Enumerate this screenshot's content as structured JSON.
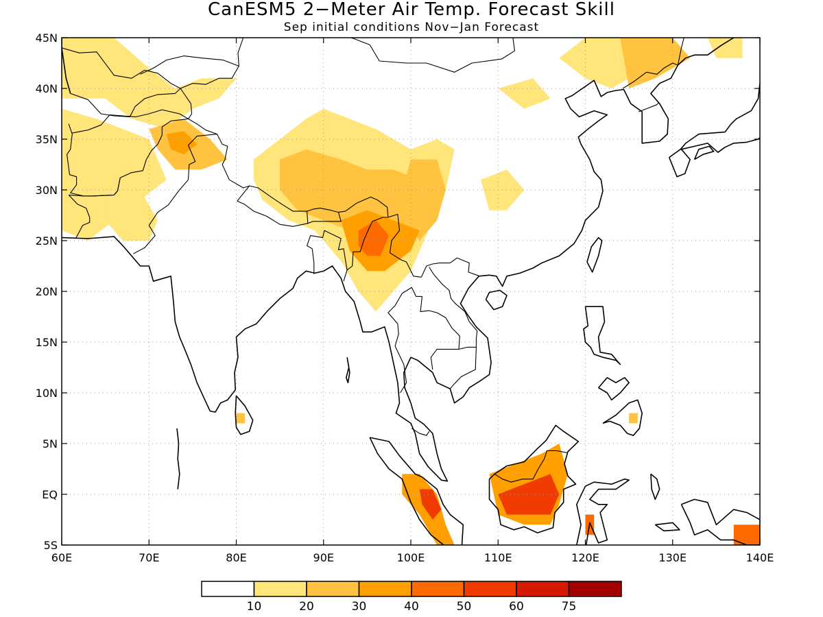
{
  "title": "CanESM5 2−Meter Air Temp. Forecast Skill",
  "subtitle": "Sep initial conditions   Nov−Jan Forecast",
  "map": {
    "lon_range": [
      60,
      140
    ],
    "lat_range": [
      -5,
      45
    ],
    "lon_ticks": [
      {
        "value": 60,
        "label": "60E"
      },
      {
        "value": 70,
        "label": "70E"
      },
      {
        "value": 80,
        "label": "80E"
      },
      {
        "value": 90,
        "label": "90E"
      },
      {
        "value": 100,
        "label": "100E"
      },
      {
        "value": 110,
        "label": "110E"
      },
      {
        "value": 120,
        "label": "120E"
      },
      {
        "value": 130,
        "label": "130E"
      },
      {
        "value": 140,
        "label": "140E"
      }
    ],
    "lat_ticks": [
      {
        "value": 45,
        "label": "45N"
      },
      {
        "value": 40,
        "label": "40N"
      },
      {
        "value": 35,
        "label": "35N"
      },
      {
        "value": 30,
        "label": "30N"
      },
      {
        "value": 25,
        "label": "25N"
      },
      {
        "value": 20,
        "label": "20N"
      },
      {
        "value": 15,
        "label": "15N"
      },
      {
        "value": 10,
        "label": "10N"
      },
      {
        "value": 5,
        "label": "5N"
      },
      {
        "value": 0,
        "label": "EQ"
      },
      {
        "value": -5,
        "label": "5S"
      }
    ],
    "grid": true,
    "skill_regions": [
      {
        "name": "central-asia-west",
        "level": 1,
        "points": [
          [
            60,
            45
          ],
          [
            66,
            45
          ],
          [
            70,
            42
          ],
          [
            73,
            40
          ],
          [
            75,
            38
          ],
          [
            72,
            36
          ],
          [
            68,
            37
          ],
          [
            65,
            39
          ],
          [
            60,
            39
          ]
        ]
      },
      {
        "name": "iran-afghanistan",
        "level": 1,
        "points": [
          [
            60,
            38
          ],
          [
            64,
            37
          ],
          [
            67,
            36
          ],
          [
            70,
            35
          ],
          [
            72,
            31
          ],
          [
            69,
            29
          ],
          [
            66,
            27
          ],
          [
            63,
            25
          ],
          [
            60,
            26
          ]
        ]
      },
      {
        "name": "pakistan-north",
        "level": 1,
        "points": [
          [
            65,
            30
          ],
          [
            69,
            30
          ],
          [
            71,
            27
          ],
          [
            70,
            25
          ],
          [
            67,
            25
          ],
          [
            65,
            27
          ]
        ]
      },
      {
        "name": "kashmir",
        "level": 2,
        "points": [
          [
            70,
            36
          ],
          [
            74,
            37
          ],
          [
            77,
            35
          ],
          [
            79,
            33
          ],
          [
            76,
            32
          ],
          [
            73,
            32
          ],
          [
            71,
            34
          ]
        ]
      },
      {
        "name": "kashmir-core",
        "level": 3,
        "points": [
          [
            72,
            35.5
          ],
          [
            74,
            35.8
          ],
          [
            75.5,
            34.5
          ],
          [
            74,
            33.5
          ],
          [
            72.5,
            34
          ]
        ]
      },
      {
        "name": "tarim-north",
        "level": 1,
        "points": [
          [
            73,
            40
          ],
          [
            76,
            41
          ],
          [
            80,
            41
          ],
          [
            78,
            39
          ],
          [
            75,
            38
          ]
        ]
      },
      {
        "name": "tibet-outer",
        "level": 1,
        "points": [
          [
            82,
            33
          ],
          [
            85,
            35
          ],
          [
            88,
            37
          ],
          [
            90,
            38
          ],
          [
            93,
            37
          ],
          [
            96,
            36
          ],
          [
            98,
            35
          ],
          [
            100,
            34
          ],
          [
            103,
            35
          ],
          [
            105,
            34
          ],
          [
            104,
            30
          ],
          [
            102,
            26
          ],
          [
            100,
            22
          ],
          [
            98,
            20
          ],
          [
            96,
            18
          ],
          [
            94,
            20
          ],
          [
            92,
            23
          ],
          [
            89,
            26
          ],
          [
            86,
            27
          ],
          [
            83,
            29
          ],
          [
            82,
            31
          ]
        ]
      },
      {
        "name": "tibet-inner",
        "level": 2,
        "points": [
          [
            85,
            33
          ],
          [
            88,
            34
          ],
          [
            92,
            33
          ],
          [
            95,
            32
          ],
          [
            98,
            32
          ],
          [
            101,
            31
          ],
          [
            102,
            29
          ],
          [
            101,
            26
          ],
          [
            99,
            24
          ],
          [
            96,
            24
          ],
          [
            93,
            26
          ],
          [
            90,
            27
          ],
          [
            87,
            28
          ],
          [
            85,
            30
          ]
        ]
      },
      {
        "name": "sichuan",
        "level": 2,
        "points": [
          [
            100,
            33
          ],
          [
            103,
            33
          ],
          [
            104,
            30
          ],
          [
            103,
            27
          ],
          [
            101,
            25
          ],
          [
            99,
            27
          ],
          [
            99,
            30
          ]
        ]
      },
      {
        "name": "yunnan-assam",
        "level": 3,
        "points": [
          [
            92,
            27
          ],
          [
            95,
            28
          ],
          [
            98,
            27
          ],
          [
            101,
            26
          ],
          [
            100,
            24
          ],
          [
            97,
            22
          ],
          [
            95,
            22
          ],
          [
            93,
            24
          ]
        ]
      },
      {
        "name": "yunnan-core",
        "level": 4,
        "points": [
          [
            94,
            26
          ],
          [
            96,
            27
          ],
          [
            97.5,
            25.5
          ],
          [
            96.5,
            23.5
          ],
          [
            95,
            23.5
          ],
          [
            94,
            24.5
          ]
        ]
      },
      {
        "name": "mongolia-east",
        "level": 1,
        "points": [
          [
            120,
            45
          ],
          [
            128,
            45
          ],
          [
            131,
            44
          ],
          [
            127,
            42
          ],
          [
            123,
            40
          ],
          [
            120,
            41
          ],
          [
            117,
            43
          ]
        ]
      },
      {
        "name": "korea-manchuria",
        "level": 2,
        "points": [
          [
            124,
            45
          ],
          [
            130,
            45
          ],
          [
            132,
            43
          ],
          [
            128,
            41
          ],
          [
            125,
            40
          ]
        ]
      },
      {
        "name": "japan-north",
        "level": 1,
        "points": [
          [
            134,
            45
          ],
          [
            138,
            45
          ],
          [
            138,
            43
          ],
          [
            135,
            43
          ]
        ]
      },
      {
        "name": "china-east-patch",
        "level": 1,
        "points": [
          [
            108,
            31
          ],
          [
            111,
            32
          ],
          [
            113,
            30
          ],
          [
            111,
            28
          ],
          [
            109,
            28
          ]
        ]
      },
      {
        "name": "mongolia-patch",
        "level": 1,
        "points": [
          [
            110,
            40
          ],
          [
            114,
            41
          ],
          [
            116,
            39
          ],
          [
            113,
            38
          ]
        ]
      },
      {
        "name": "borneo-outer",
        "level": 3,
        "points": [
          [
            109,
            2
          ],
          [
            112,
            3
          ],
          [
            115,
            4
          ],
          [
            117,
            5
          ],
          [
            118,
            2
          ],
          [
            117,
            -1
          ],
          [
            116,
            -3
          ],
          [
            113,
            -3
          ],
          [
            110,
            -2
          ]
        ]
      },
      {
        "name": "borneo-inner",
        "level": 5,
        "points": [
          [
            110,
            0
          ],
          [
            113,
            1
          ],
          [
            116,
            2
          ],
          [
            117,
            0
          ],
          [
            116,
            -2
          ],
          [
            113,
            -2
          ],
          [
            111,
            -2
          ]
        ]
      },
      {
        "name": "sumatra",
        "level": 3,
        "points": [
          [
            99,
            2
          ],
          [
            101,
            2
          ],
          [
            103,
            0
          ],
          [
            104,
            -3
          ],
          [
            105,
            -5
          ],
          [
            103,
            -5
          ],
          [
            101,
            -2
          ],
          [
            99,
            0
          ]
        ]
      },
      {
        "name": "sumatra-core",
        "level": 5,
        "points": [
          [
            101,
            0.5
          ],
          [
            102.5,
            0.5
          ],
          [
            103.5,
            -1.5
          ],
          [
            102.5,
            -2.5
          ],
          [
            101.3,
            -1
          ]
        ]
      },
      {
        "name": "sulawesi",
        "level": 4,
        "points": [
          [
            120,
            -2
          ],
          [
            121,
            -2
          ],
          [
            121,
            -4
          ],
          [
            120,
            -4
          ]
        ]
      },
      {
        "name": "new-guinea",
        "level": 4,
        "points": [
          [
            137,
            -3
          ],
          [
            140,
            -3
          ],
          [
            140,
            -5
          ],
          [
            137,
            -5
          ]
        ]
      },
      {
        "name": "srilanka-patch",
        "level": 2,
        "points": [
          [
            80,
            8
          ],
          [
            81,
            8
          ],
          [
            81,
            7
          ],
          [
            80,
            7
          ]
        ]
      },
      {
        "name": "mindanao-patch",
        "level": 2,
        "points": [
          [
            125,
            8
          ],
          [
            126,
            8
          ],
          [
            126,
            7
          ],
          [
            125,
            7
          ]
        ]
      }
    ]
  },
  "legend": {
    "labels": [
      "10",
      "20",
      "30",
      "40",
      "50",
      "60",
      "75"
    ],
    "colors": [
      "#ffffff",
      "#ffe57a",
      "#ffc33f",
      "#ff9f00",
      "#ff6a00",
      "#f03c00",
      "#d41a00",
      "#a30000"
    ]
  }
}
